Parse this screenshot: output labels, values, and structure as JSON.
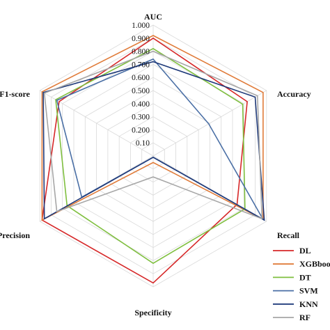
{
  "chart_data": {
    "type": "radar",
    "axes": [
      "AUC",
      "Accuracy",
      "Recall",
      "Specificity",
      "Precision",
      "F1-score"
    ],
    "ticks": [
      "0.10",
      "0.200",
      "0.300",
      "0.400",
      "0.500",
      "0.600",
      "0.700",
      "0.800",
      "0.900",
      "1.000"
    ],
    "tick_values": [
      0.1,
      0.2,
      0.3,
      0.4,
      0.5,
      0.6,
      0.7,
      0.8,
      0.9,
      1.0
    ],
    "range": [
      0,
      1
    ],
    "grid": true,
    "legend_position": "bottom-right",
    "series": [
      {
        "name": "DL",
        "color": "#d62728",
        "values": [
          0.9,
          0.83,
          0.74,
          0.97,
          0.98,
          0.83
        ]
      },
      {
        "name": "XGBboost",
        "color": "#e07b39",
        "values": [
          0.92,
          0.97,
          0.97,
          0.05,
          0.98,
          0.98
        ]
      },
      {
        "name": "DT",
        "color": "#7fbf3f",
        "values": [
          0.82,
          0.79,
          0.81,
          0.82,
          0.76,
          0.86
        ]
      },
      {
        "name": "SVM",
        "color": "#4a6fa5",
        "values": [
          0.74,
          0.49,
          0.97,
          0.01,
          0.63,
          0.85
        ]
      },
      {
        "name": "KNN",
        "color": "#1f3a7a",
        "values": [
          0.72,
          0.9,
          0.98,
          0.01,
          0.96,
          0.97
        ]
      },
      {
        "name": "RF",
        "color": "#a6a6a6",
        "values": [
          0.8,
          0.92,
          0.96,
          0.16,
          0.85,
          0.96
        ]
      }
    ]
  }
}
